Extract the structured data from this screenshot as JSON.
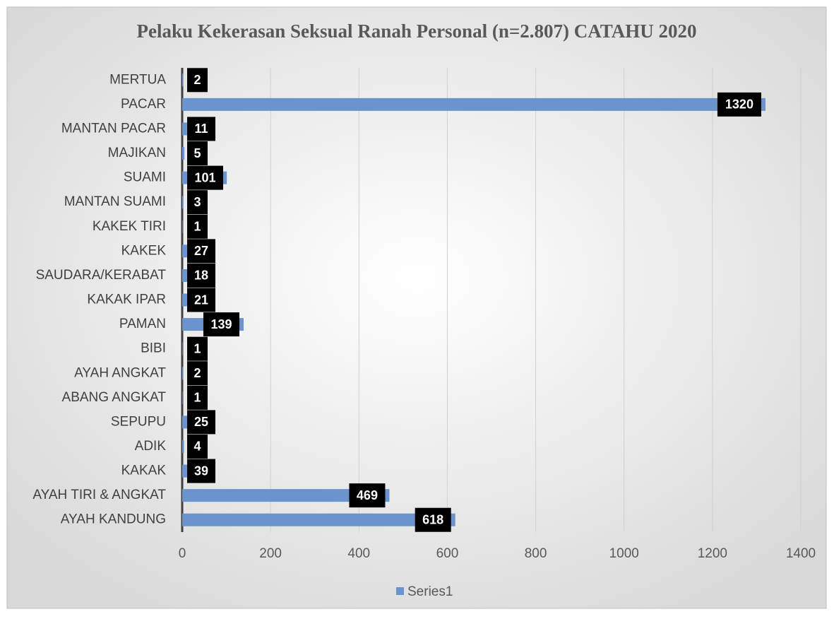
{
  "chart_data": {
    "type": "bar",
    "orientation": "horizontal",
    "title": "Pelaku Kekerasan Seksual Ranah Personal (n=2.807) CATAHU 2020",
    "categories": [
      "MERTUA",
      "PACAR",
      "MANTAN PACAR",
      "MAJIKAN",
      "SUAMI",
      "MANTAN SUAMI",
      "KAKEK TIRI",
      "KAKEK",
      "SAUDARA/KERABAT",
      "KAKAK IPAR",
      "PAMAN",
      "BIBI",
      "AYAH ANGKAT",
      "ABANG ANGKAT",
      "SEPUPU",
      "ADIK",
      "KAKAK",
      "AYAH TIRI & ANGKAT",
      "AYAH KANDUNG"
    ],
    "series": [
      {
        "name": "Series1",
        "color": "#6b93ce",
        "values": [
          2,
          1320,
          11,
          5,
          101,
          3,
          1,
          27,
          18,
          21,
          139,
          1,
          2,
          1,
          25,
          4,
          39,
          469,
          618
        ]
      }
    ],
    "xlim": [
      0,
      1400
    ],
    "xticks": [
      0,
      200,
      400,
      600,
      800,
      1000,
      1200,
      1400
    ],
    "grid": true,
    "legend": "bottom"
  }
}
